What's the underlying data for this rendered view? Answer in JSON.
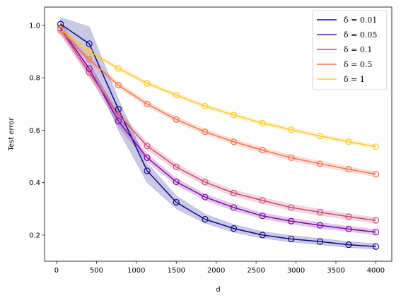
{
  "chart_data": {
    "type": "line",
    "xlabel": "d",
    "ylabel": "Test error",
    "xlim": [
      -150,
      4200
    ],
    "ylim": [
      0.1,
      1.07
    ],
    "xticks": [
      "0",
      "500",
      "1000",
      "1500",
      "2000",
      "2500",
      "3000",
      "3500",
      "4000"
    ],
    "yticks": [
      "0.2",
      "0.4",
      "0.6",
      "0.8",
      "1.0"
    ],
    "xtick_values": [
      0,
      500,
      1000,
      1500,
      2000,
      2500,
      3000,
      3500,
      4000
    ],
    "ytick_values": [
      0.2,
      0.4,
      0.6,
      0.8,
      1.0
    ],
    "grid": false,
    "legend_position": "top-right",
    "x": [
      50,
      410,
      775,
      1135,
      1500,
      1860,
      2220,
      2580,
      2940,
      3300,
      3660,
      4000
    ],
    "series": [
      {
        "name": "δ = 0.01",
        "color": "#0d0887",
        "values": [
          1.005,
          0.93,
          0.68,
          0.445,
          0.325,
          0.26,
          0.225,
          0.2,
          0.185,
          0.175,
          0.163,
          0.156
        ],
        "lower": [
          0.985,
          0.86,
          0.6,
          0.4,
          0.3,
          0.245,
          0.21,
          0.188,
          0.173,
          0.163,
          0.152,
          0.146
        ],
        "upper": [
          1.03,
          0.995,
          0.72,
          0.475,
          0.35,
          0.28,
          0.24,
          0.213,
          0.198,
          0.187,
          0.175,
          0.167
        ]
      },
      {
        "name": "δ = 0.05",
        "color": "#7e03a8",
        "values": [
          0.99,
          0.835,
          0.635,
          0.495,
          0.403,
          0.345,
          0.305,
          0.273,
          0.253,
          0.237,
          0.223,
          0.211
        ],
        "lower": [
          0.97,
          0.81,
          0.615,
          0.48,
          0.39,
          0.333,
          0.293,
          0.262,
          0.242,
          0.226,
          0.213,
          0.201
        ],
        "upper": [
          1.01,
          0.86,
          0.655,
          0.51,
          0.416,
          0.357,
          0.317,
          0.284,
          0.264,
          0.248,
          0.233,
          0.221
        ]
      },
      {
        "name": "δ = 0.1",
        "color": "#cc4778",
        "values": [
          0.985,
          0.82,
          0.66,
          0.54,
          0.46,
          0.402,
          0.36,
          0.332,
          0.305,
          0.287,
          0.27,
          0.256
        ],
        "lower": [
          0.965,
          0.8,
          0.645,
          0.525,
          0.447,
          0.39,
          0.348,
          0.32,
          0.293,
          0.275,
          0.259,
          0.245
        ],
        "upper": [
          1.005,
          0.84,
          0.675,
          0.555,
          0.473,
          0.414,
          0.372,
          0.344,
          0.317,
          0.299,
          0.281,
          0.267
        ]
      },
      {
        "name": "δ = 0.5",
        "color": "#f0734e",
        "values": [
          0.98,
          0.87,
          0.772,
          0.7,
          0.641,
          0.594,
          0.556,
          0.524,
          0.495,
          0.472,
          0.451,
          0.432
        ],
        "lower": [
          0.968,
          0.86,
          0.762,
          0.69,
          0.631,
          0.584,
          0.546,
          0.514,
          0.485,
          0.462,
          0.441,
          0.422
        ],
        "upper": [
          0.992,
          0.88,
          0.782,
          0.71,
          0.651,
          0.604,
          0.566,
          0.534,
          0.505,
          0.482,
          0.461,
          0.442
        ]
      },
      {
        "name": "δ = 1",
        "color": "#f9ca2b",
        "values": [
          0.985,
          0.9,
          0.836,
          0.779,
          0.734,
          0.692,
          0.658,
          0.627,
          0.602,
          0.578,
          0.556,
          0.537
        ],
        "lower": [
          0.976,
          0.892,
          0.828,
          0.771,
          0.726,
          0.684,
          0.65,
          0.619,
          0.594,
          0.57,
          0.548,
          0.529
        ],
        "upper": [
          0.994,
          0.908,
          0.844,
          0.787,
          0.742,
          0.7,
          0.666,
          0.635,
          0.61,
          0.586,
          0.564,
          0.545
        ]
      }
    ]
  }
}
